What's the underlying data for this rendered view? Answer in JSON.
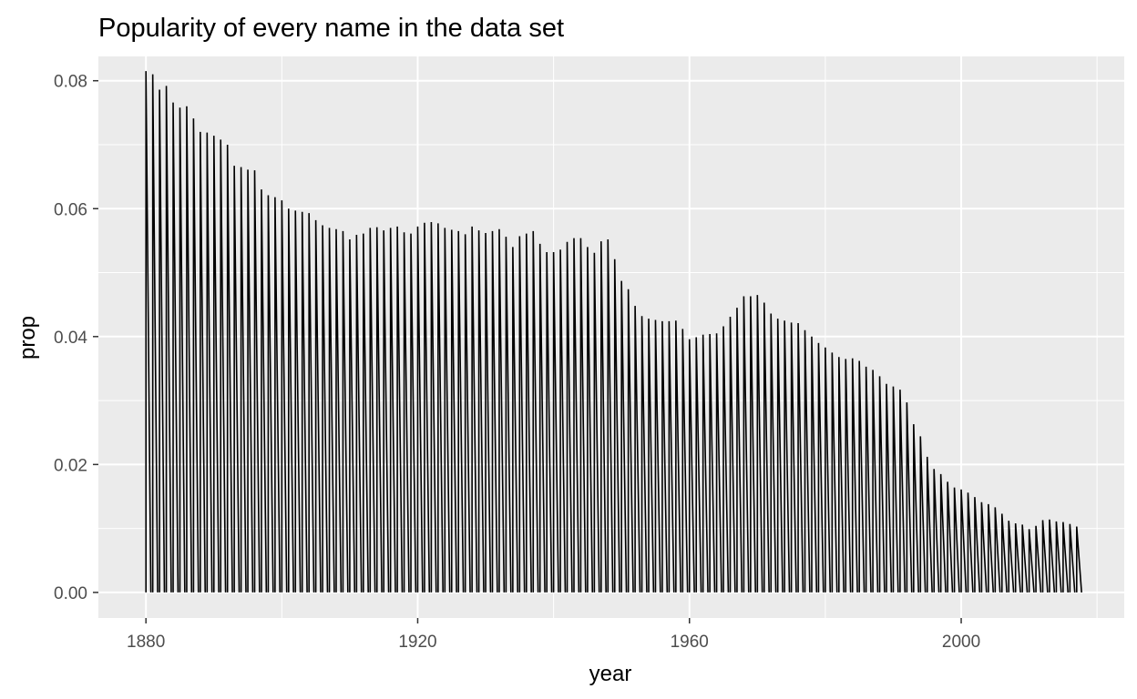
{
  "chart_data": {
    "type": "line",
    "title": "Popularity of every name in the data set",
    "xlabel": "year",
    "ylabel": "prop",
    "xlim": [
      1873,
      2024
    ],
    "ylim": [
      -0.004,
      0.0838
    ],
    "x_ticks": [
      {
        "value": 1880,
        "label": "1880"
      },
      {
        "value": 1920,
        "label": "1920"
      },
      {
        "value": 1960,
        "label": "1960"
      },
      {
        "value": 2000,
        "label": "2000"
      }
    ],
    "y_ticks": [
      {
        "value": 0.0,
        "label": "0.00"
      },
      {
        "value": 0.02,
        "label": "0.02"
      },
      {
        "value": 0.04,
        "label": "0.04"
      },
      {
        "value": 0.06,
        "label": "0.06"
      },
      {
        "value": 0.08,
        "label": "0.08"
      }
    ],
    "x_minor": [
      1900,
      1940,
      1980,
      2020
    ],
    "y_minor": [
      0.01,
      0.03,
      0.05,
      0.07
    ],
    "grid": true,
    "colors": {
      "panel": "#ebebeb",
      "grid": "#ffffff",
      "line": "#000000",
      "tick_text": "#4d4d4d"
    },
    "series": [
      {
        "x": [
          1880,
          1881,
          1882,
          1883,
          1884,
          1885,
          1886,
          1887,
          1888,
          1889,
          1890,
          1891,
          1892,
          1893,
          1894,
          1895,
          1896,
          1897,
          1898,
          1899,
          1900,
          1901,
          1902,
          1903,
          1904,
          1905,
          1906,
          1907,
          1908,
          1909,
          1910,
          1911,
          1912,
          1913,
          1914,
          1915,
          1916,
          1917,
          1918,
          1919,
          1920,
          1921,
          1922,
          1923,
          1924,
          1925,
          1926,
          1927,
          1928,
          1929,
          1930,
          1931,
          1932,
          1933,
          1934,
          1935,
          1936,
          1937,
          1938,
          1939,
          1940,
          1941,
          1942,
          1943,
          1944,
          1945,
          1946,
          1947,
          1948,
          1949,
          1950,
          1951,
          1952,
          1953,
          1954,
          1955,
          1956,
          1957,
          1958,
          1959,
          1960,
          1961,
          1962,
          1963,
          1964,
          1965,
          1966,
          1967,
          1968,
          1969,
          1970,
          1971,
          1972,
          1973,
          1974,
          1975,
          1976,
          1977,
          1978,
          1979,
          1980,
          1981,
          1982,
          1983,
          1984,
          1985,
          1986,
          1987,
          1988,
          1989,
          1990,
          1991,
          1992,
          1993,
          1994,
          1995,
          1996,
          1997,
          1998,
          1999,
          2000,
          2001,
          2002,
          2003,
          2004,
          2005,
          2006,
          2007,
          2008,
          2009,
          2010,
          2011,
          2012,
          2013,
          2014,
          2015,
          2016,
          2017
        ],
        "y": [
          0.0815,
          0.081,
          0.0786,
          0.0792,
          0.0766,
          0.0758,
          0.076,
          0.0741,
          0.072,
          0.0719,
          0.0714,
          0.0708,
          0.07,
          0.0667,
          0.0665,
          0.0661,
          0.066,
          0.063,
          0.0621,
          0.0618,
          0.0613,
          0.06,
          0.0597,
          0.0595,
          0.0593,
          0.0582,
          0.0574,
          0.057,
          0.0568,
          0.0565,
          0.0552,
          0.0559,
          0.0561,
          0.057,
          0.0571,
          0.0566,
          0.057,
          0.0572,
          0.0563,
          0.0561,
          0.0572,
          0.0578,
          0.0579,
          0.0577,
          0.057,
          0.0567,
          0.0565,
          0.056,
          0.0572,
          0.0566,
          0.0562,
          0.0565,
          0.0568,
          0.0556,
          0.054,
          0.0557,
          0.0561,
          0.0565,
          0.0545,
          0.0532,
          0.0532,
          0.0536,
          0.0548,
          0.0554,
          0.0554,
          0.054,
          0.0531,
          0.0549,
          0.0552,
          0.0521,
          0.0487,
          0.0474,
          0.0448,
          0.0432,
          0.0428,
          0.0426,
          0.0424,
          0.0424,
          0.0425,
          0.0412,
          0.0396,
          0.0399,
          0.0403,
          0.0404,
          0.0405,
          0.0416,
          0.0431,
          0.0445,
          0.0463,
          0.0463,
          0.0465,
          0.0453,
          0.0436,
          0.0428,
          0.0425,
          0.0422,
          0.0421,
          0.041,
          0.04,
          0.039,
          0.0383,
          0.0375,
          0.0368,
          0.0365,
          0.0366,
          0.0362,
          0.0353,
          0.0348,
          0.0338,
          0.0326,
          0.0322,
          0.0317,
          0.0297,
          0.0263,
          0.0244,
          0.0212,
          0.0193,
          0.0185,
          0.0173,
          0.0164,
          0.0161,
          0.0156,
          0.0149,
          0.0141,
          0.0138,
          0.0133,
          0.0123,
          0.0112,
          0.0108,
          0.0106,
          0.0099,
          0.0104,
          0.0113,
          0.0114,
          0.0111,
          0.011,
          0.0107,
          0.0103
        ]
      }
    ]
  }
}
